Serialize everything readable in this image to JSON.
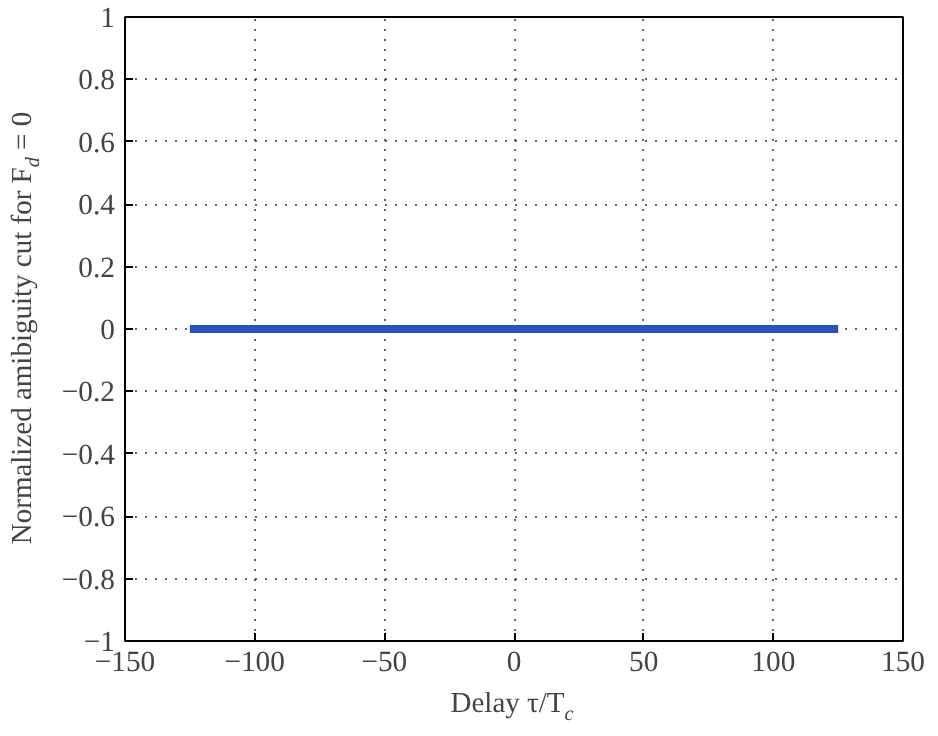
{
  "chart_data": {
    "type": "line",
    "xlabel": "Delay τ/T$_{c}$",
    "ylabel": "Normalized amibiguity cut for F$_{d}$ = 0",
    "x": [
      -125,
      125
    ],
    "series": [
      {
        "color": "#2a52be",
        "values": [
          0,
          0
        ]
      }
    ],
    "xlim": [
      -150,
      150
    ],
    "ylim": [
      -1,
      1
    ],
    "xticks": [
      -150,
      -100,
      -50,
      0,
      50,
      100,
      150
    ],
    "yticks": [
      -1,
      -0.8,
      -0.6,
      -0.4,
      -0.2,
      0,
      0.2,
      0.4,
      0.6,
      0.8,
      1
    ],
    "grid": true,
    "line_style": "solid"
  }
}
